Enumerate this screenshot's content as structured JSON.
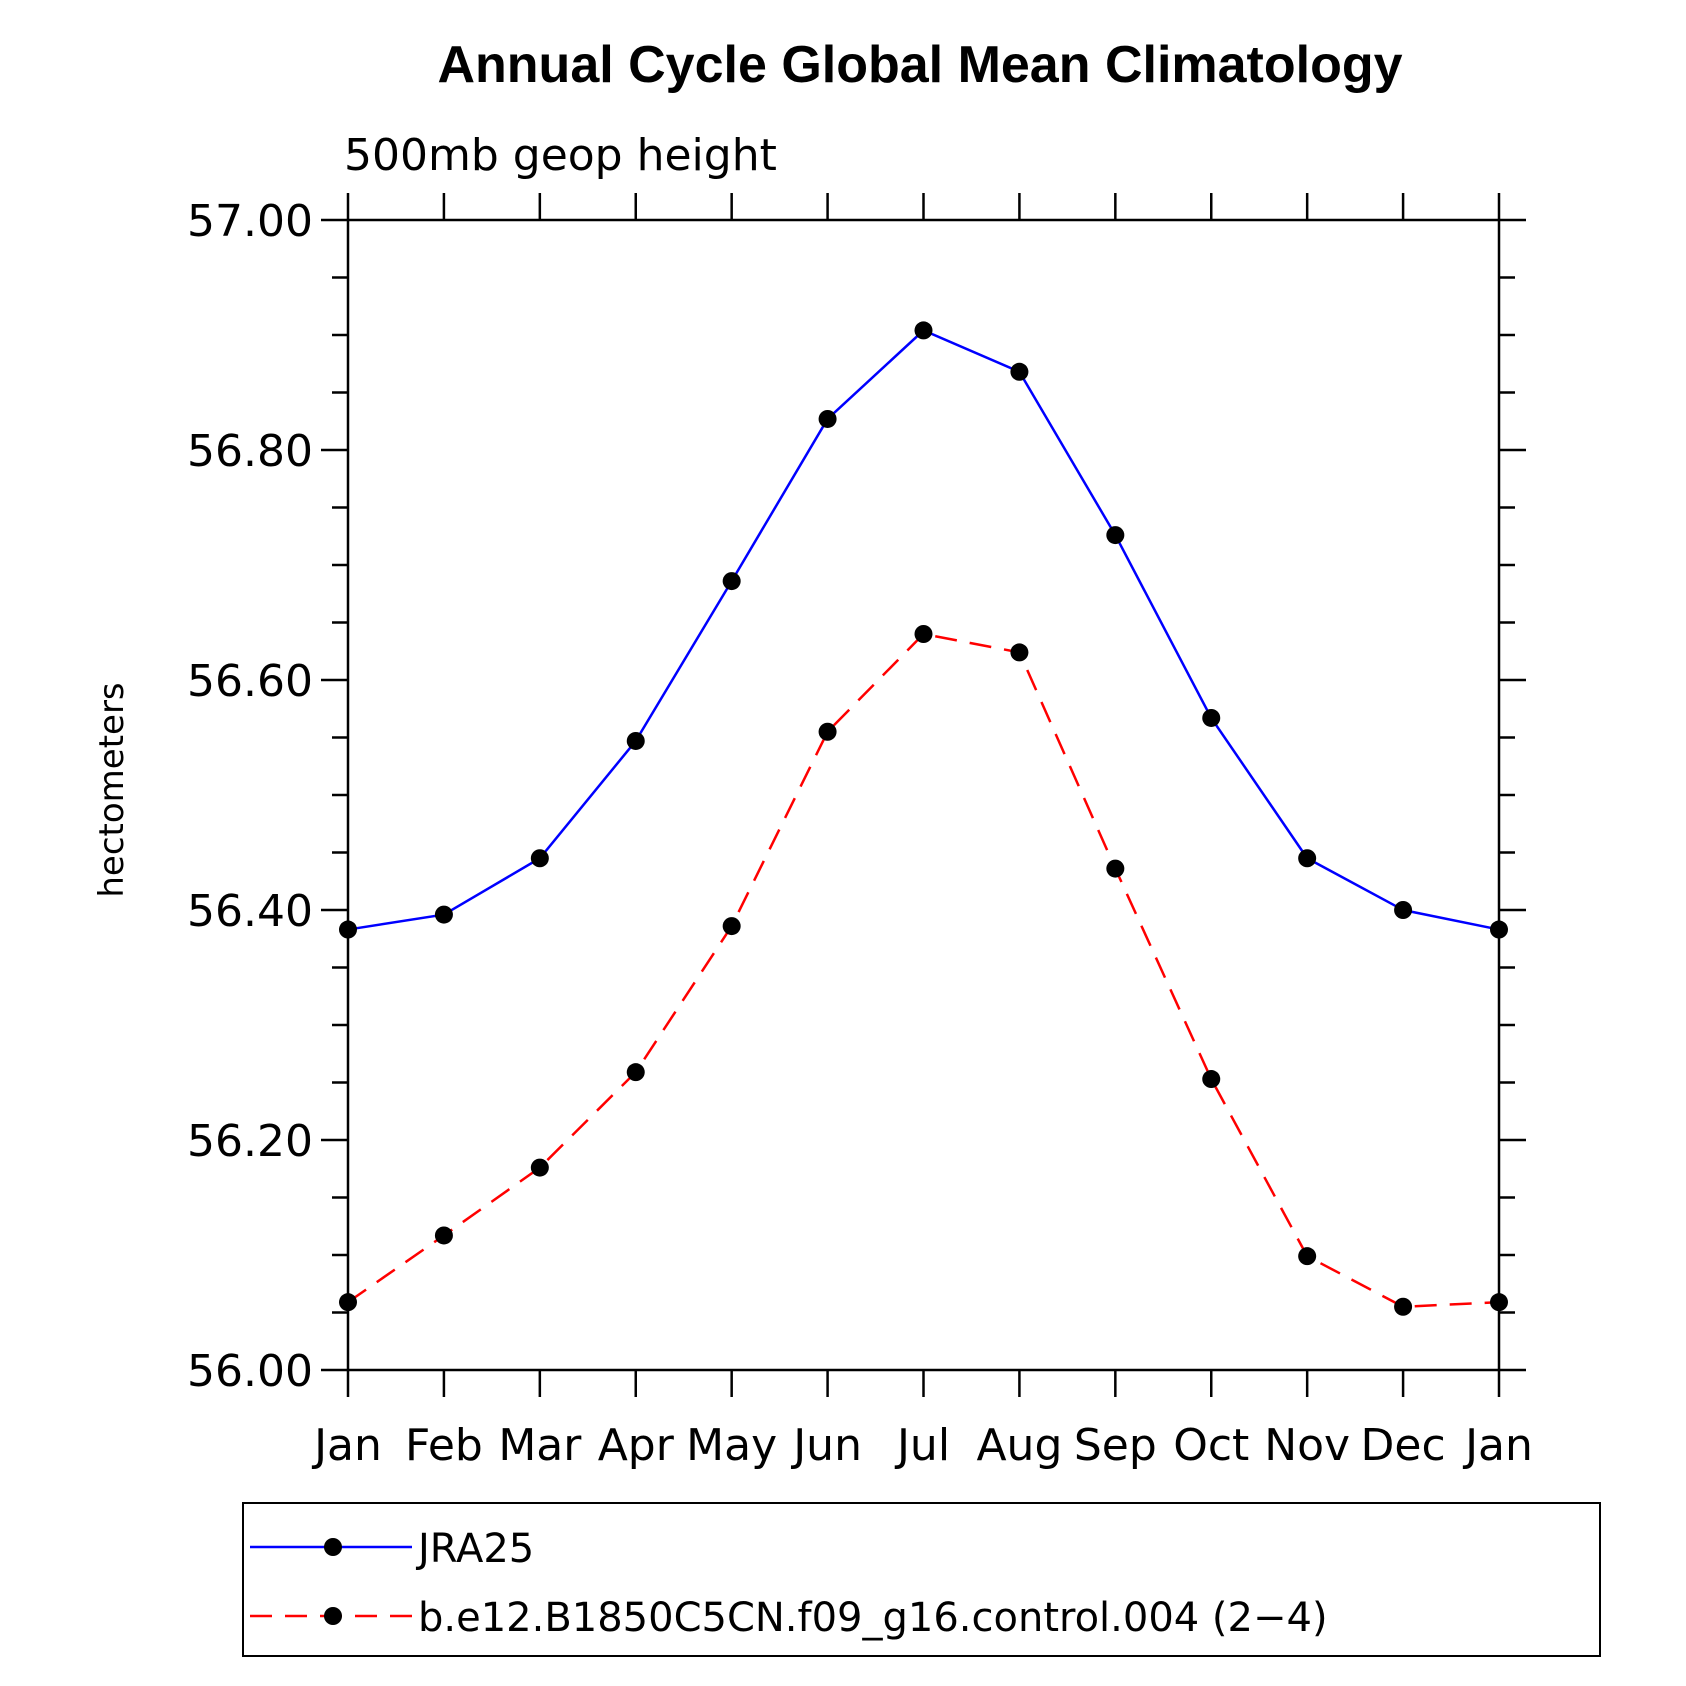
{
  "chart_data": {
    "type": "line",
    "title": "Annual Cycle Global Mean Climatology",
    "subtitle": "500mb geop height",
    "ylabel": "hectometers",
    "xlabel": "",
    "categories": [
      "Jan",
      "Feb",
      "Mar",
      "Apr",
      "May",
      "Jun",
      "Jul",
      "Aug",
      "Sep",
      "Oct",
      "Nov",
      "Dec",
      "Jan"
    ],
    "ylim": [
      56.0,
      57.0
    ],
    "yticks": [
      "56.00",
      "56.20",
      "56.40",
      "56.60",
      "56.80",
      "57.00"
    ],
    "grid": false,
    "legend_position": "bottom",
    "series": [
      {
        "name": "JRA25",
        "color": "#0000ff",
        "dash": "solid",
        "values": [
          56.383,
          56.396,
          56.445,
          56.547,
          56.686,
          56.827,
          56.904,
          56.868,
          56.726,
          56.567,
          56.445,
          56.4,
          56.383
        ]
      },
      {
        "name": "b.e12.B1850C5CN.f09_g16.control.004 (2−4)",
        "color": "#ff0000",
        "dash": "dashed",
        "values": [
          56.059,
          56.117,
          56.176,
          56.259,
          56.386,
          56.555,
          56.64,
          56.624,
          56.436,
          56.253,
          56.099,
          56.055,
          56.059
        ]
      }
    ]
  }
}
